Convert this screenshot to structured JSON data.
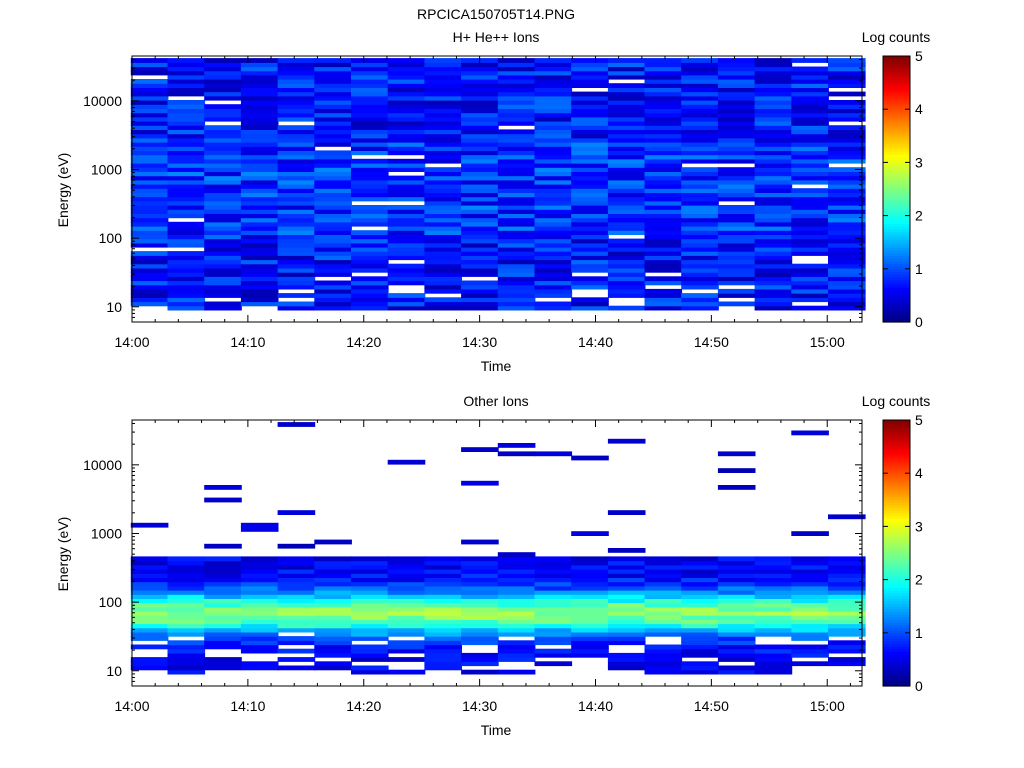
{
  "figure": {
    "title": "RPCICA150705T14.PNG"
  },
  "chart_data": [
    {
      "type": "heatmap",
      "title": "H+ He++ Ions",
      "xlabel": "Time",
      "ylabel": "Energy (eV)",
      "x_ticks": [
        "14:00",
        "14:10",
        "14:20",
        "14:30",
        "14:40",
        "14:50",
        "15:00"
      ],
      "x_range": [
        "14:00",
        "15:03"
      ],
      "y_scale": "log",
      "y_ticks": [
        "10",
        "100",
        "1000",
        "10000"
      ],
      "y_range_ev": [
        6,
        45000
      ],
      "time_bins": [
        "14:01:30",
        "14:04:40",
        "14:07:50",
        "14:11:00",
        "14:14:10",
        "14:17:20",
        "14:20:30",
        "14:23:40",
        "14:26:50",
        "14:30:00",
        "14:33:10",
        "14:36:20",
        "14:39:30",
        "14:42:40",
        "14:45:50",
        "14:49:00",
        "14:52:10",
        "14:55:20",
        "14:58:30",
        "15:01:40"
      ],
      "energy_range_ev": [
        6,
        45000
      ],
      "log_counts_typical": [
        0.3,
        1.2
      ],
      "empty_cells_note": "",
      "colorbar": {
        "label": "Log counts",
        "min": 0,
        "max": 5,
        "ticks": [
          "0",
          "1",
          "2",
          "3",
          "4",
          "5"
        ]
      }
    },
    {
      "type": "heatmap",
      "title": "Other Ions",
      "xlabel": "Time",
      "ylabel": "Energy (eV)",
      "x_ticks": [
        "14:00",
        "14:10",
        "14:20",
        "14:30",
        "14:40",
        "14:50",
        "15:00"
      ],
      "x_range": [
        "14:00",
        "15:03"
      ],
      "y_scale": "log",
      "y_ticks": [
        "10",
        "100",
        "1000",
        "10000"
      ],
      "y_range_ev": [
        6,
        45000
      ],
      "time_bins": [
        "14:01:30",
        "14:04:40",
        "14:07:50",
        "14:11:00",
        "14:14:10",
        "14:17:20",
        "14:20:30",
        "14:23:40",
        "14:26:50",
        "14:30:00",
        "14:33:10",
        "14:36:20",
        "14:39:30",
        "14:42:40",
        "14:45:50",
        "14:49:00",
        "14:52:10",
        "14:55:20",
        "14:58:30",
        "15:01:40"
      ],
      "peak_band_ev": [
        40,
        200
      ],
      "peak_log_counts": [
        1.3,
        2.3
      ],
      "colorbar": {
        "label": "Log counts",
        "min": 0,
        "max": 5,
        "ticks": [
          "0",
          "1",
          "2",
          "3",
          "4",
          "5"
        ]
      }
    }
  ]
}
